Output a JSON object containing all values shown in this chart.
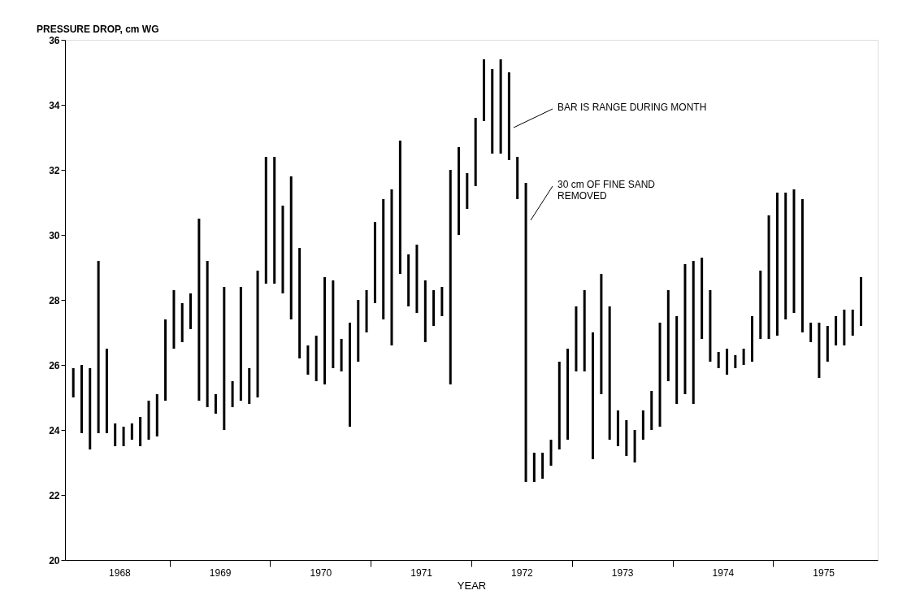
{
  "chart_data": {
    "type": "bar",
    "ylabel": "PRESSURE DROP, cm WG",
    "xlabel": "YEAR",
    "x": [
      1968.042,
      1968.125,
      1968.208,
      1968.292,
      1968.375,
      1968.458,
      1968.542,
      1968.625,
      1968.708,
      1968.792,
      1968.875,
      1968.958,
      1969.042,
      1969.125,
      1969.208,
      1969.292,
      1969.375,
      1969.458,
      1969.542,
      1969.625,
      1969.708,
      1969.792,
      1969.875,
      1969.958,
      1970.042,
      1970.125,
      1970.208,
      1970.292,
      1970.375,
      1970.458,
      1970.542,
      1970.625,
      1970.708,
      1970.792,
      1970.875,
      1970.958,
      1971.042,
      1971.125,
      1971.208,
      1971.292,
      1971.375,
      1971.458,
      1971.542,
      1971.625,
      1971.708,
      1971.792,
      1971.875,
      1971.958,
      1972.042,
      1972.125,
      1972.208,
      1972.292,
      1972.375,
      1972.458,
      1972.542,
      1972.625,
      1972.708,
      1972.792,
      1972.875,
      1972.958,
      1973.042,
      1973.125,
      1973.208,
      1973.292,
      1973.375,
      1973.458,
      1973.542,
      1973.625,
      1973.708,
      1973.792,
      1973.875,
      1973.958,
      1974.042,
      1974.125,
      1974.208,
      1974.292,
      1974.375,
      1974.458,
      1974.542,
      1974.625,
      1974.708,
      1974.792,
      1974.875,
      1974.958,
      1975.042,
      1975.125,
      1975.208,
      1975.292,
      1975.375,
      1975.458,
      1975.542,
      1975.625,
      1975.708,
      1975.792,
      1975.875
    ],
    "series": [
      {
        "color": "#000000",
        "base": [
          25.0,
          23.9,
          23.4,
          23.9,
          23.9,
          23.5,
          23.5,
          23.7,
          23.5,
          23.7,
          23.8,
          24.9,
          26.5,
          26.7,
          27.1,
          24.9,
          24.7,
          24.5,
          24.0,
          24.7,
          24.9,
          24.8,
          25.0,
          28.5,
          28.5,
          28.2,
          27.4,
          26.2,
          25.7,
          25.5,
          25.4,
          25.9,
          25.8,
          24.1,
          26.1,
          27.0,
          27.9,
          27.4,
          26.6,
          28.8,
          27.8,
          27.6,
          26.7,
          27.2,
          27.5,
          25.4,
          30.0,
          30.8,
          31.5,
          33.5,
          32.5,
          32.5,
          32.3,
          31.1,
          22.4,
          22.4,
          22.5,
          22.9,
          23.4,
          23.7,
          25.8,
          25.8,
          23.1,
          25.1,
          23.7,
          23.5,
          23.2,
          23.0,
          23.7,
          24.0,
          24.1,
          25.5,
          24.8,
          25.1,
          24.8,
          26.8,
          26.1,
          25.9,
          25.7,
          25.9,
          26.0,
          26.1,
          26.8,
          26.8,
          26.9,
          27.4,
          27.6,
          27.0,
          26.7,
          25.6,
          26.1,
          26.6,
          26.6,
          26.9,
          27.2
        ],
        "values": [
          0.9,
          2.1,
          2.5,
          5.3,
          2.6,
          0.7,
          0.6,
          0.5,
          0.9,
          1.2,
          1.3,
          2.5,
          1.8,
          1.2,
          1.1,
          5.6,
          4.5,
          0.6,
          4.4,
          0.8,
          3.5,
          1.1,
          3.9,
          3.9,
          3.9,
          2.7,
          4.4,
          3.4,
          0.9,
          1.4,
          3.3,
          2.7,
          1.0,
          3.2,
          1.9,
          1.3,
          2.5,
          3.7,
          4.8,
          4.1,
          1.6,
          2.1,
          1.9,
          1.1,
          0.9,
          6.6,
          2.7,
          1.1,
          2.1,
          1.9,
          2.6,
          2.9,
          2.7,
          1.3,
          9.2,
          0.9,
          0.8,
          0.8,
          2.7,
          2.8,
          2.0,
          2.5,
          3.9,
          3.7,
          4.1,
          1.1,
          1.1,
          1.0,
          0.9,
          1.2,
          3.2,
          2.8,
          2.7,
          4.0,
          4.4,
          2.5,
          2.2,
          0.5,
          0.8,
          0.4,
          0.5,
          1.4,
          2.1,
          3.8,
          4.4,
          3.9,
          3.8,
          4.1,
          0.6,
          1.7,
          1.1,
          0.9,
          1.1,
          0.8,
          1.5
        ]
      }
    ],
    "xlim": [
      1968,
      1976
    ],
    "xticks": [
      {
        "value": 1969,
        "label": null
      },
      {
        "value": 1970,
        "label": null
      },
      {
        "value": 1971,
        "label": null
      },
      {
        "value": 1972,
        "label": null
      },
      {
        "value": 1973,
        "label": null
      },
      {
        "value": 1974,
        "label": null
      },
      {
        "value": 1975,
        "label": null
      },
      {
        "value": 1968.5,
        "label": "1968"
      },
      {
        "value": 1969.5,
        "label": "1969"
      },
      {
        "value": 1970.5,
        "label": "1970"
      },
      {
        "value": 1971.5,
        "label": "1971"
      },
      {
        "value": 1972.5,
        "label": "1972"
      },
      {
        "value": 1973.5,
        "label": "1973"
      },
      {
        "value": 1974.5,
        "label": "1974"
      },
      {
        "value": 1975.5,
        "label": "1975"
      }
    ],
    "ylim": [
      20,
      36
    ],
    "yticks": [
      20,
      22,
      24,
      26,
      28,
      30,
      32,
      34,
      36
    ],
    "annotations": [
      "BAR IS RANGE DURING MONTH",
      "30 cm OF FINE SAND\nREMOVED"
    ],
    "grid": false
  }
}
